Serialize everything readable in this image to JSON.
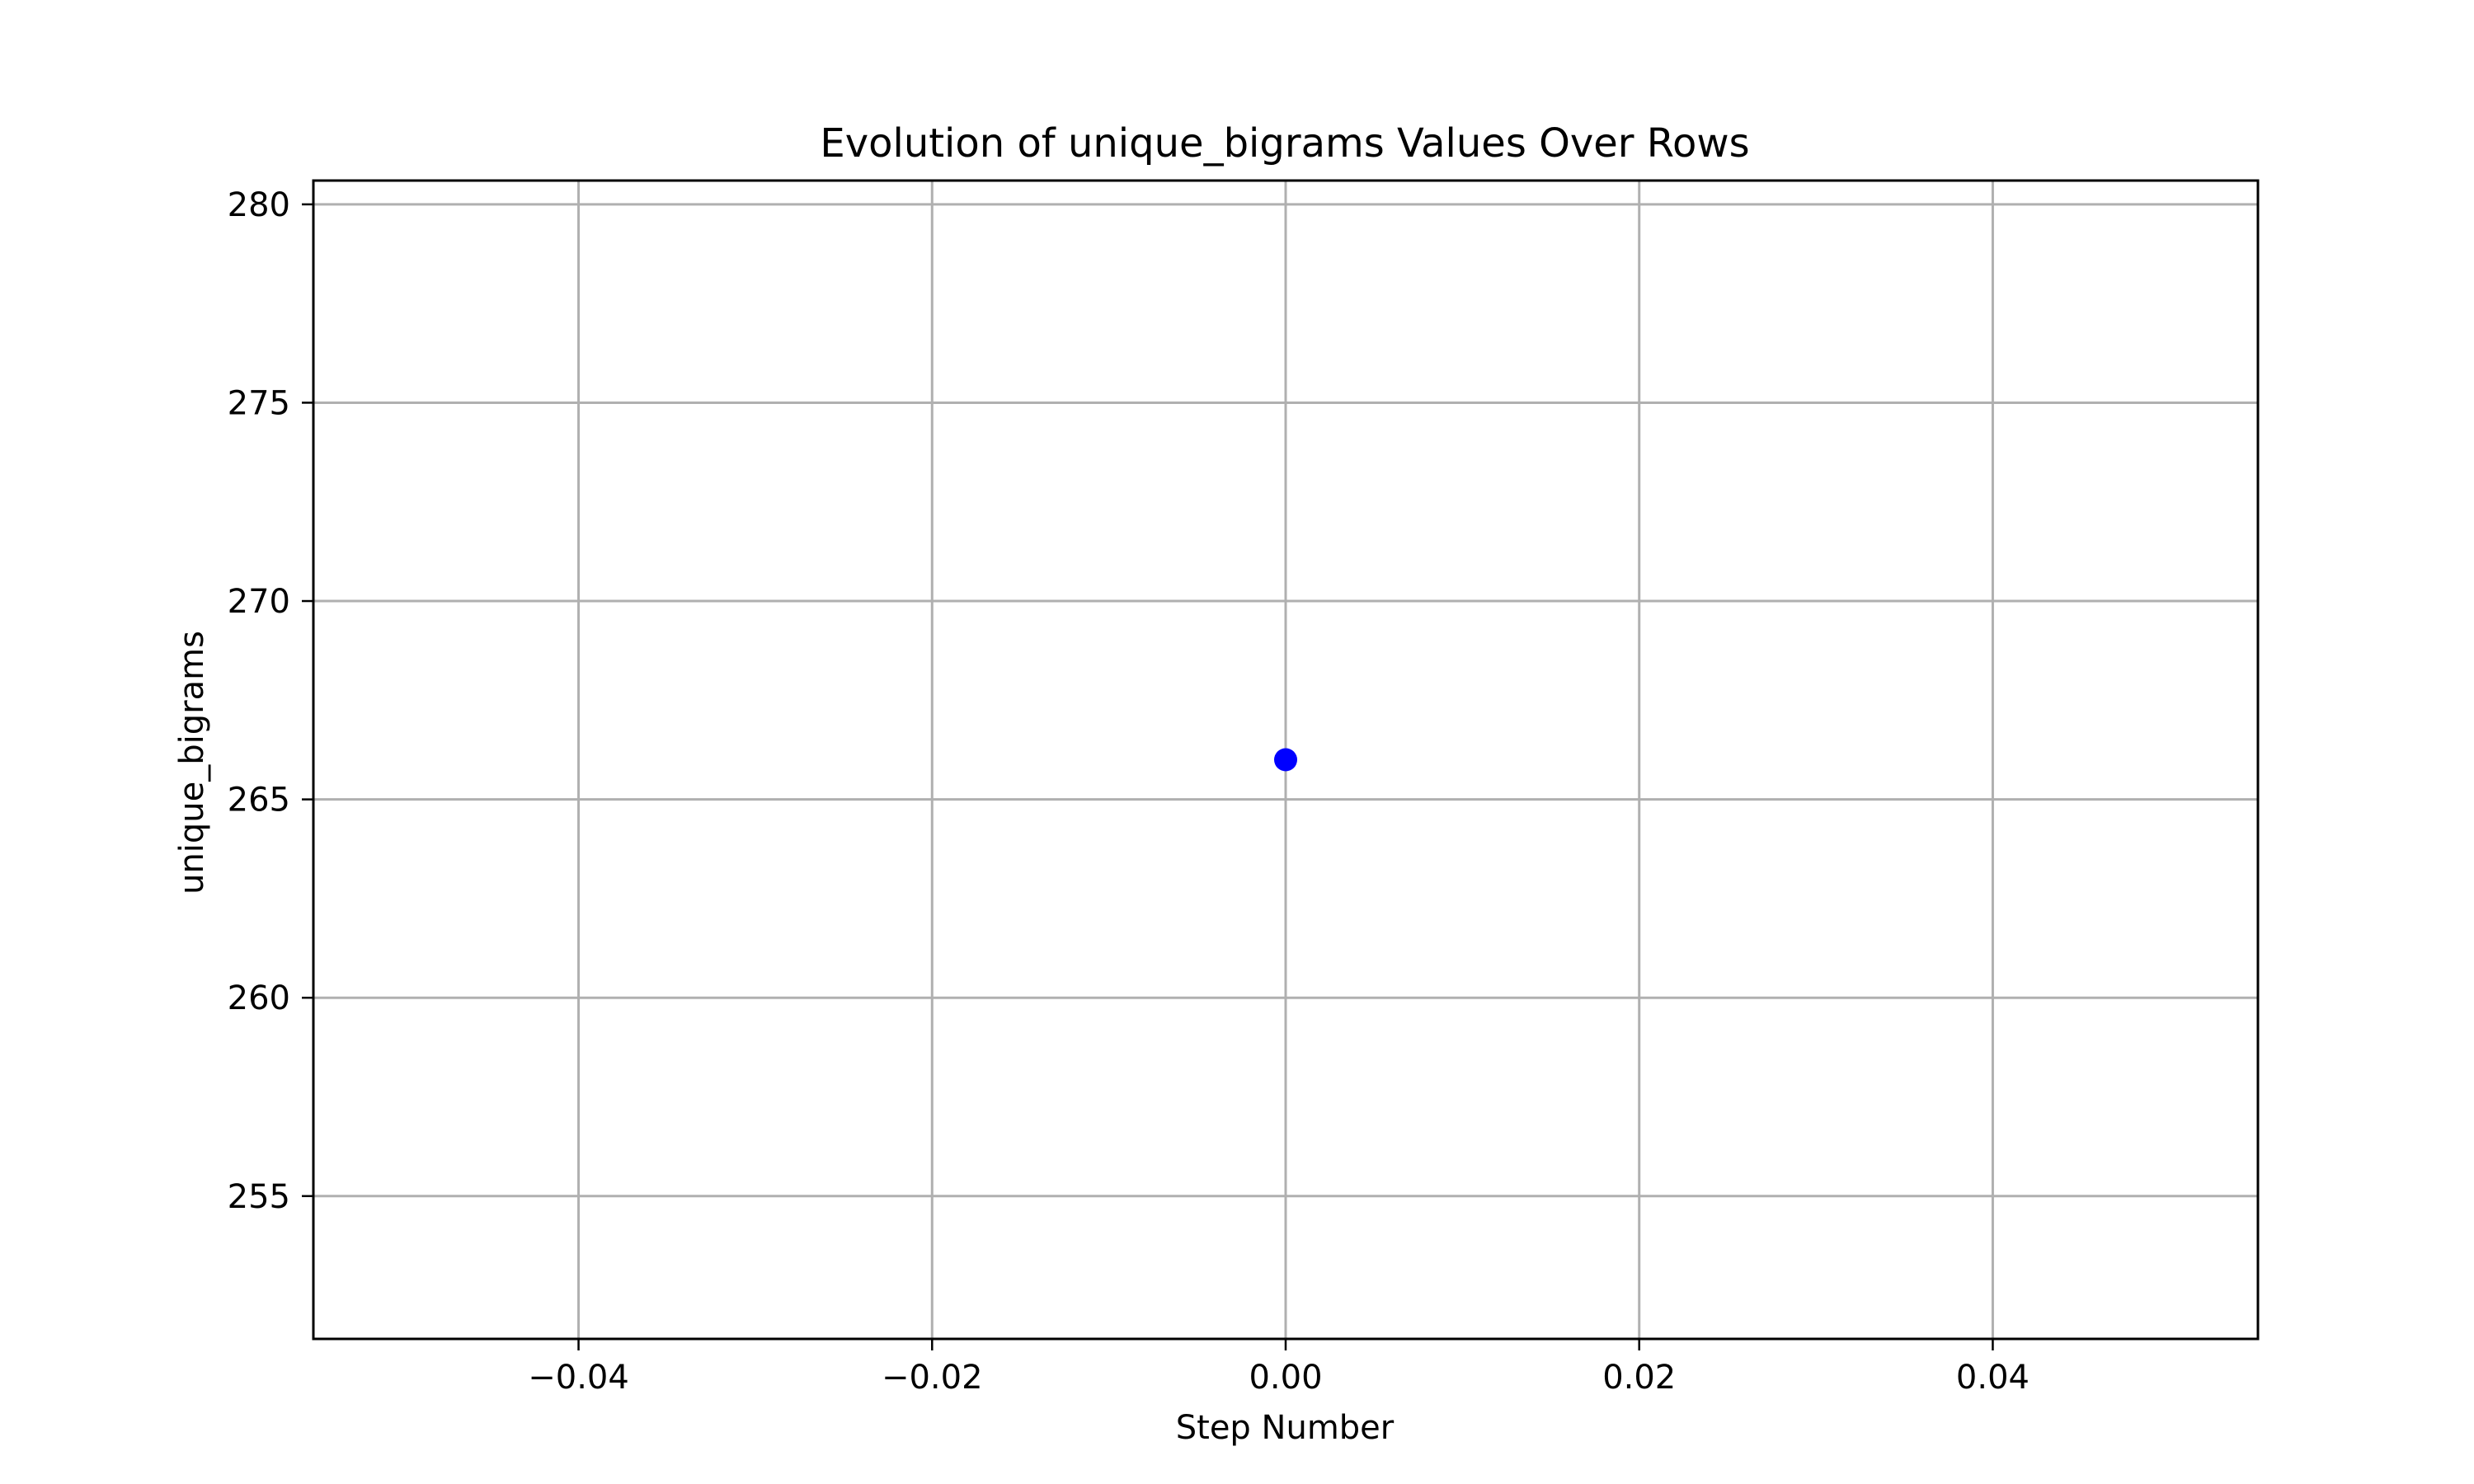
{
  "chart_data": {
    "type": "scatter",
    "title": "Evolution of unique_bigrams Values Over Rows",
    "xlabel": "Step Number",
    "ylabel": "unique_bigrams",
    "xlim": [
      -0.055,
      0.055
    ],
    "ylim": [
      251.4,
      280.6
    ],
    "x_ticks": [
      -0.04,
      -0.02,
      0.0,
      0.02,
      0.04
    ],
    "x_tick_labels": [
      "−0.04",
      "−0.02",
      "0.00",
      "0.02",
      "0.04"
    ],
    "y_ticks": [
      255,
      260,
      265,
      270,
      275,
      280
    ],
    "y_tick_labels": [
      "255",
      "260",
      "265",
      "270",
      "275",
      "280"
    ],
    "grid": true,
    "series": [
      {
        "color": "#0000ff",
        "x": [
          0.0
        ],
        "y": [
          266
        ]
      }
    ]
  }
}
